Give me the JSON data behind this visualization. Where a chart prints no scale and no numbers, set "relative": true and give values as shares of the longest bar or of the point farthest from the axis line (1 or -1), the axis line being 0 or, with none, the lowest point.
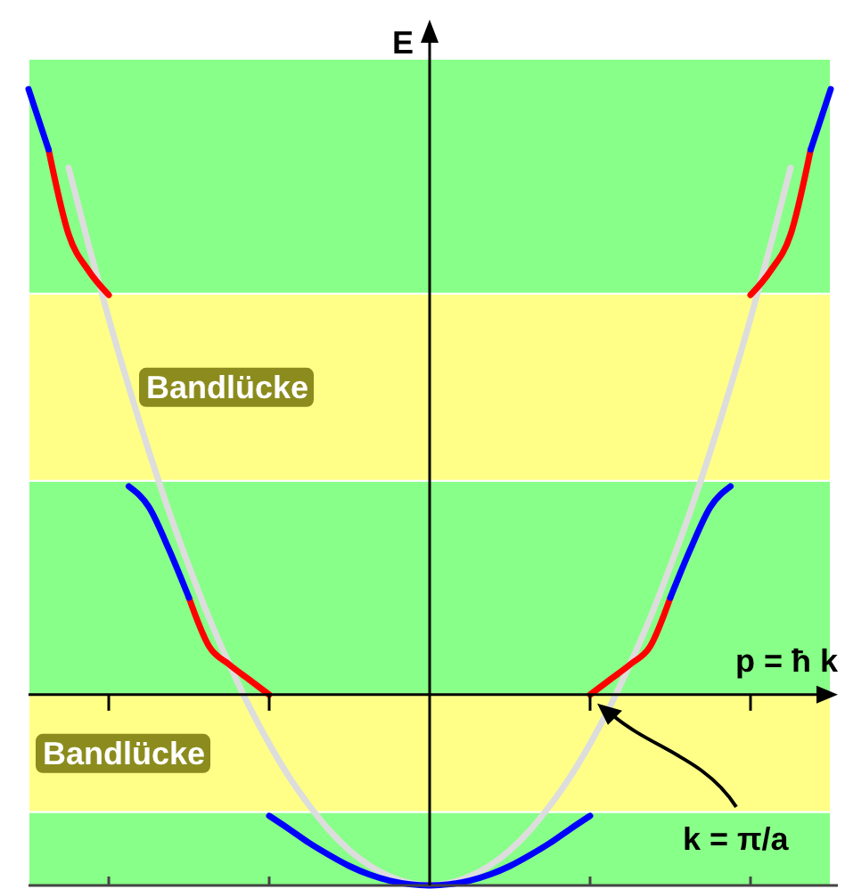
{
  "chart_data": {
    "type": "line",
    "relative": true,
    "xlabel": "p = ħ k",
    "ylabel": "E",
    "categories": [
      null,
      null,
      null,
      null,
      null,
      null,
      null,
      null,
      null,
      null,
      null,
      null,
      null,
      null,
      null,
      null,
      null,
      null,
      null,
      null,
      null,
      null,
      null,
      null,
      null,
      null,
      null,
      null,
      null,
      null,
      null,
      null,
      null,
      null,
      null,
      null,
      null,
      null,
      null,
      null,
      null
    ],
    "bands": [
      {
        "axis": "y",
        "from": 0.662,
        "to": 1.05,
        "color": "#88ff88"
      },
      {
        "axis": "y",
        "from": 0.353,
        "to": 0.662,
        "color": "#ffff88",
        "label": "Bandlücke"
      },
      {
        "axis": "y",
        "from": 0,
        "to": 0.353,
        "color": "#88ff88"
      },
      {
        "axis": "y",
        "from": -0.194,
        "to": 0,
        "color": "#ffff88",
        "label": "Bandlücke"
      },
      {
        "axis": "y",
        "from": -0.315,
        "to": -0.194,
        "color": "#88ff88"
      }
    ],
    "series": [
      {
        "color": "#dddddd",
        "values": [
          null,
          null,
          0.87,
          0.742,
          0.621,
          0.508,
          0.402,
          0.303,
          0.212,
          0.127,
          0.051,
          -0.019,
          -0.081,
          -0.136,
          -0.183,
          -0.224,
          -0.257,
          -0.282,
          -0.3,
          -0.311,
          -0.315,
          -0.311,
          -0.3,
          -0.282,
          -0.257,
          -0.224,
          -0.183,
          -0.136,
          -0.081,
          -0.019,
          0.051,
          0.127,
          0.212,
          0.303,
          0.402,
          0.508,
          0.621,
          0.742,
          0.87,
          null,
          null
        ]
      },
      {
        "color": "#0000ff",
        "values": [
          null,
          null,
          null,
          null,
          null,
          null,
          null,
          null,
          null,
          null,
          null,
          null,
          -0.2,
          -0.222,
          -0.245,
          -0.265,
          -0.283,
          -0.297,
          -0.307,
          -0.313,
          -0.315,
          -0.313,
          -0.307,
          -0.297,
          -0.283,
          -0.265,
          -0.245,
          -0.222,
          -0.2,
          null,
          null,
          null,
          null,
          null,
          null,
          null,
          null,
          null,
          null,
          null,
          null
        ]
      },
      {
        "color": "#ff0000",
        "values": [
          null,
          null,
          null,
          null,
          null,
          null,
          null,
          null,
          null,
          null,
          null,
          null,
          null,
          null,
          null,
          null,
          null,
          null,
          null,
          null,
          null,
          null,
          null,
          null,
          null,
          null,
          null,
          null,
          0,
          0.025,
          0.05,
          0.08,
          0.16,
          null,
          null,
          null,
          null,
          null,
          null,
          null,
          null
        ]
      },
      {
        "color": "#0000ff",
        "values": [
          null,
          null,
          null,
          null,
          null,
          null,
          null,
          null,
          null,
          null,
          null,
          null,
          null,
          null,
          null,
          null,
          null,
          null,
          null,
          null,
          null,
          null,
          null,
          null,
          null,
          null,
          null,
          null,
          null,
          null,
          null,
          null,
          0.16,
          0.24,
          0.31,
          0.344,
          null,
          null,
          null,
          null,
          null
        ]
      },
      {
        "color": "#ff0000",
        "values": [
          null,
          null,
          null,
          null,
          null,
          null,
          null,
          null,
          null,
          null,
          null,
          null,
          null,
          null,
          null,
          null,
          null,
          null,
          null,
          null,
          null,
          null,
          null,
          null,
          null,
          null,
          null,
          null,
          null,
          null,
          null,
          null,
          null,
          null,
          null,
          null,
          0.66,
          0.7,
          0.76,
          0.9,
          null
        ]
      },
      {
        "color": "#0000ff",
        "values": [
          null,
          null,
          null,
          null,
          null,
          null,
          null,
          null,
          null,
          null,
          null,
          null,
          null,
          null,
          null,
          null,
          null,
          null,
          null,
          null,
          null,
          null,
          null,
          null,
          null,
          null,
          null,
          null,
          null,
          null,
          null,
          null,
          null,
          null,
          null,
          null,
          null,
          null,
          null,
          0.9,
          1.0
        ]
      },
      {
        "color": "#ff0000",
        "values": [
          null,
          null,
          null,
          null,
          null,
          null,
          null,
          null,
          0.16,
          0.08,
          0.05,
          0.025,
          0,
          null,
          null,
          null,
          null,
          null,
          null,
          null,
          null,
          null,
          null,
          null,
          null,
          null,
          null,
          null,
          null,
          null,
          null,
          null,
          null,
          null,
          null,
          null,
          null,
          null,
          null,
          null,
          null
        ]
      },
      {
        "color": "#0000ff",
        "values": [
          null,
          null,
          null,
          null,
          null,
          0.344,
          0.31,
          0.24,
          0.16,
          null,
          null,
          null,
          null,
          null,
          null,
          null,
          null,
          null,
          null,
          null,
          null,
          null,
          null,
          null,
          null,
          null,
          null,
          null,
          null,
          null,
          null,
          null,
          null,
          null,
          null,
          null,
          null,
          null,
          null,
          null,
          null
        ]
      },
      {
        "color": "#ff0000",
        "values": [
          null,
          0.9,
          0.76,
          0.7,
          0.66,
          null,
          null,
          null,
          null,
          null,
          null,
          null,
          null,
          null,
          null,
          null,
          null,
          null,
          null,
          null,
          null,
          null,
          null,
          null,
          null,
          null,
          null,
          null,
          null,
          null,
          null,
          null,
          null,
          null,
          null,
          null,
          null,
          null,
          null,
          null,
          null
        ]
      },
      {
        "color": "#0000ff",
        "values": [
          1.0,
          0.9,
          null,
          null,
          null,
          null,
          null,
          null,
          null,
          null,
          null,
          null,
          null,
          null,
          null,
          null,
          null,
          null,
          null,
          null,
          null,
          null,
          null,
          null,
          null,
          null,
          null,
          null,
          null,
          null,
          null,
          null,
          null,
          null,
          null,
          null,
          null,
          null,
          null,
          null,
          null
        ]
      }
    ],
    "annotations": [
      "k = π/a"
    ]
  }
}
